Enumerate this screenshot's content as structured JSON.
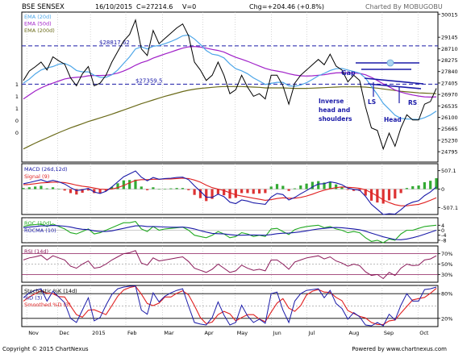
{
  "header": {
    "symbol": "BSE SENSEX",
    "date": "16/10/2015",
    "close": "C=27214.6",
    "volume": "V=0",
    "change": "Chg=+204.46 (+0.8%)",
    "credit": "Charted By MOBUGOBU"
  },
  "footer": {
    "copyright": "Copyright © 2015 ChartNexus",
    "powered": "Powered by www.chartnexus.com"
  },
  "colors": {
    "price": "#000000",
    "ema20": "#4da6e8",
    "ema50": "#a020c8",
    "ema200": "#6b6b1a",
    "macd": "#1a1aa8",
    "signal": "#e02020",
    "hist_pos": "#33aa33",
    "hist_neg": "#dd3333",
    "roc": "#22aa22",
    "rocma": "#1a1aa8",
    "rsi": "#8b1a5a",
    "stoch_k": "#1a1aa8",
    "stoch_d": "#e02020",
    "panel_border": "#000000",
    "guide": "#1a1aa8"
  },
  "chart_data": [
    {
      "type": "line",
      "panel": "price",
      "legend": [
        "EMA (20d)",
        "EMA (50d)",
        "EMA (200d)"
      ],
      "ylim": [
        24400,
        30100
      ],
      "yticks": [
        "30015",
        "29145",
        "28710",
        "28275",
        "27840",
        "27405",
        "26970",
        "26535",
        "26100",
        "25665",
        "25230",
        "24795"
      ],
      "left_axis_labels": [
        "1",
        "1",
        "1",
        "0",
        "0"
      ],
      "x_labels": [
        "Nov",
        "Dec",
        "2015",
        "Feb",
        "Mar",
        "Apr",
        "May",
        "Jun",
        "Jul",
        "Aug",
        "Sep",
        "Oct"
      ],
      "levels": [
        {
          "value": 28817.62,
          "label": "$28817.62"
        },
        {
          "value": 27359.5,
          "label": "$27359.5"
        }
      ],
      "annotations": [
        "Gap",
        "Inverse",
        "head and",
        "shoulders",
        "LS",
        "Head",
        "RS"
      ],
      "price": [
        27500,
        27860,
        28020,
        28200,
        27900,
        28400,
        28250,
        28120,
        27600,
        27300,
        27750,
        28030,
        27300,
        27400,
        27700,
        28200,
        28600,
        29000,
        29250,
        29800,
        28700,
        28450,
        29400,
        28900,
        29100,
        29300,
        29500,
        29650,
        29200,
        28200,
        27900,
        27500,
        27700,
        28200,
        27700,
        27000,
        27150,
        27700,
        27250,
        26900,
        27000,
        26800,
        27700,
        27700,
        27300,
        26600,
        27400,
        27700,
        27900,
        28100,
        28300,
        28100,
        28500,
        28050,
        27900,
        27450,
        27700,
        27500,
        26500,
        25700,
        25600,
        24900,
        25500,
        25000,
        25700,
        26200,
        26000,
        26000,
        26600,
        26700,
        27200
      ],
      "ema20": [
        27400,
        27550,
        27750,
        27900,
        27980,
        28030,
        28120,
        28150,
        28050,
        27880,
        27830,
        27830,
        27700,
        27620,
        27620,
        27720,
        27900,
        28150,
        28400,
        28700,
        28780,
        28700,
        28800,
        28830,
        28900,
        28980,
        29080,
        29200,
        29230,
        29080,
        28870,
        28640,
        28500,
        28460,
        28360,
        28130,
        27950,
        27870,
        27760,
        27600,
        27480,
        27350,
        27390,
        27430,
        27430,
        27300,
        27280,
        27330,
        27420,
        27540,
        27680,
        27770,
        27880,
        27950,
        27960,
        27900,
        27840,
        27780,
        27590,
        27280,
        26970,
        26630,
        26410,
        26180,
        26060,
        26040,
        26030,
        26020,
        26090,
        26190,
        26340
      ],
      "ema50": [
        26800,
        26950,
        27100,
        27220,
        27320,
        27400,
        27480,
        27560,
        27600,
        27620,
        27640,
        27680,
        27690,
        27690,
        27700,
        27730,
        27780,
        27860,
        27960,
        28080,
        28180,
        28250,
        28350,
        28430,
        28510,
        28580,
        28660,
        28730,
        28780,
        28790,
        28770,
        28730,
        28680,
        28640,
        28580,
        28480,
        28380,
        28310,
        28230,
        28140,
        28050,
        27960,
        27900,
        27860,
        27820,
        27760,
        27710,
        27680,
        27670,
        27680,
        27700,
        27720,
        27760,
        27790,
        27800,
        27790,
        27780,
        27770,
        27720,
        27620,
        27500,
        27370,
        27260,
        27140,
        27060,
        27000,
        26950,
        26910,
        26880,
        26870,
        26880
      ],
      "ema200": [
        24900,
        25010,
        25120,
        25220,
        25320,
        25420,
        25520,
        25610,
        25700,
        25780,
        25860,
        25940,
        26010,
        26080,
        26150,
        26220,
        26300,
        26380,
        26460,
        26540,
        26620,
        26690,
        26760,
        26830,
        26900,
        26960,
        27020,
        27080,
        27130,
        27170,
        27200,
        27220,
        27240,
        27260,
        27270,
        27270,
        27270,
        27270,
        27260,
        27250,
        27240,
        27220,
        27220,
        27220,
        27220,
        27210,
        27200,
        27200,
        27200,
        27210,
        27220,
        27230,
        27240,
        27250,
        27260,
        27260,
        27260,
        27260,
        27250,
        27230,
        27210,
        27180,
        27150,
        27120,
        27090,
        27070,
        27050,
        27030,
        27020,
        27010,
        27000
      ]
    },
    {
      "type": "bar",
      "panel": "macd",
      "legend": [
        "MACD (26d,12d)",
        "Signal (9)"
      ],
      "ylim": [
        -700,
        700
      ],
      "yticks": [
        "507.1",
        "0",
        "-507.1"
      ],
      "macd": [
        150,
        180,
        220,
        260,
        200,
        240,
        200,
        140,
        40,
        -40,
        -20,
        20,
        -80,
        -120,
        -60,
        60,
        200,
        340,
        420,
        500,
        330,
        230,
        320,
        270,
        290,
        300,
        320,
        330,
        260,
        90,
        -60,
        -220,
        -230,
        -140,
        -210,
        -360,
        -400,
        -300,
        -330,
        -380,
        -400,
        -420,
        -220,
        -120,
        -150,
        -300,
        -230,
        -130,
        -40,
        60,
        140,
        150,
        200,
        170,
        120,
        30,
        -10,
        -30,
        -200,
        -420,
        -560,
        -700,
        -680,
        -690,
        -570,
        -430,
        -360,
        -320,
        -180,
        -80,
        60
      ],
      "signal": [
        120,
        130,
        150,
        170,
        180,
        190,
        190,
        180,
        150,
        110,
        80,
        60,
        30,
        0,
        -10,
        0,
        40,
        100,
        170,
        240,
        260,
        260,
        270,
        270,
        280,
        280,
        290,
        300,
        290,
        250,
        190,
        110,
        40,
        0,
        -40,
        -100,
        -160,
        -190,
        -220,
        -250,
        -280,
        -310,
        -290,
        -260,
        -240,
        -250,
        -250,
        -230,
        -190,
        -140,
        -80,
        -30,
        10,
        40,
        60,
        50,
        40,
        20,
        -20,
        -100,
        -190,
        -300,
        -370,
        -430,
        -460,
        -460,
        -440,
        -420,
        -370,
        -310,
        -240
      ]
    },
    {
      "type": "line",
      "panel": "roc",
      "legend": [
        "ROC (10d)",
        "ROCMA (10)"
      ],
      "ylim": [
        -10,
        10
      ],
      "yticks": [
        "4",
        "0",
        "-4",
        "-8"
      ],
      "roc": [
        3,
        4,
        4.5,
        5,
        3,
        5,
        3,
        1,
        -2,
        -3,
        -1,
        1,
        -3,
        -2,
        0,
        2,
        4,
        6,
        6,
        7,
        1,
        -1,
        3,
        0,
        1,
        1.5,
        2,
        2.5,
        0,
        -4,
        -5,
        -6,
        -4,
        -1,
        -3,
        -6,
        -5,
        -2,
        -3,
        -5,
        -4,
        -5,
        1,
        1.5,
        -1,
        -3.5,
        0.5,
        2,
        3,
        3.5,
        4,
        2,
        3,
        1,
        0,
        -2,
        -1,
        -2,
        -6,
        -9,
        -8,
        -10,
        -7,
        -8,
        -3,
        0,
        0,
        1.5,
        3,
        3.5,
        4
      ],
      "rocma": [
        2,
        2.5,
        3,
        3.5,
        3.5,
        3.8,
        3.6,
        3.2,
        2.5,
        1.5,
        0.8,
        0.5,
        -0.5,
        -1,
        -1,
        -0.5,
        0.5,
        1.5,
        2.5,
        3.5,
        3.5,
        3,
        3,
        2.8,
        2.6,
        2.4,
        2.4,
        2.5,
        2,
        1,
        -0.3,
        -1.5,
        -2.5,
        -2.8,
        -3,
        -3.5,
        -4,
        -4,
        -3.8,
        -3.8,
        -3.9,
        -4,
        -3.5,
        -2.8,
        -2.4,
        -2.3,
        -1.8,
        -1.2,
        -0.5,
        0.3,
        1,
        1.5,
        2,
        2.2,
        2,
        1.5,
        1,
        0.4,
        -0.8,
        -2.3,
        -3.8,
        -5.3,
        -6.4,
        -7.4,
        -7.6,
        -7,
        -6,
        -4.8,
        -3.2,
        -1.6,
        0
      ]
    },
    {
      "type": "line",
      "panel": "rsi",
      "legend": [
        "RSI (14d)"
      ],
      "ylim": [
        15,
        85
      ],
      "yticks": [
        "70%",
        "50%",
        "30%"
      ],
      "rsi": [
        58,
        62,
        64,
        67,
        58,
        66,
        62,
        58,
        46,
        42,
        50,
        56,
        42,
        44,
        50,
        58,
        64,
        70,
        72,
        76,
        52,
        48,
        62,
        56,
        58,
        60,
        62,
        64,
        55,
        42,
        38,
        34,
        40,
        50,
        42,
        34,
        37,
        48,
        42,
        38,
        40,
        37,
        58,
        58,
        50,
        40,
        54,
        58,
        62,
        64,
        66,
        60,
        64,
        56,
        52,
        46,
        50,
        47,
        35,
        28,
        30,
        22,
        34,
        28,
        42,
        50,
        47,
        48,
        58,
        60,
        66
      ]
    },
    {
      "type": "line",
      "panel": "stochastic",
      "legend": [
        "Stochastic %K (14d)",
        "%D (3)",
        "Smoothed %D (3)"
      ],
      "ylim": [
        0,
        100
      ],
      "yticks": [
        "80%",
        "20%"
      ],
      "k": [
        70,
        82,
        88,
        92,
        62,
        86,
        72,
        58,
        20,
        10,
        40,
        70,
        14,
        22,
        52,
        78,
        92,
        96,
        98,
        99,
        40,
        30,
        82,
        60,
        74,
        82,
        88,
        92,
        50,
        10,
        6,
        4,
        22,
        60,
        28,
        4,
        10,
        52,
        26,
        10,
        18,
        8,
        80,
        84,
        40,
        10,
        62,
        80,
        88,
        90,
        92,
        70,
        88,
        56,
        44,
        18,
        34,
        24,
        4,
        2,
        10,
        2,
        30,
        16,
        52,
        80,
        62,
        62,
        90,
        92,
        96
      ],
      "d": [
        62,
        72,
        80,
        87,
        81,
        80,
        73,
        72,
        50,
        29,
        23,
        40,
        41,
        35,
        29,
        51,
        74,
        89,
        95,
        98,
        79,
        56,
        51,
        57,
        72,
        72,
        81,
        87,
        77,
        51,
        22,
        7,
        11,
        29,
        37,
        31,
        14,
        22,
        29,
        29,
        18,
        12,
        35,
        57,
        68,
        45,
        37,
        51,
        77,
        86,
        90,
        84,
        83,
        71,
        63,
        39,
        32,
        25,
        21,
        10,
        5,
        5,
        14,
        16,
        33,
        49,
        65,
        68,
        71,
        81,
        93
      ]
    }
  ]
}
